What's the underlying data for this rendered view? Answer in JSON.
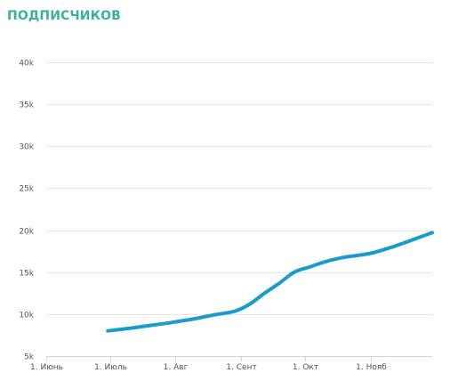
{
  "title": "ПОДПИСЧИКОВ",
  "colors": {
    "title": "#3eaf9a",
    "series": "#1a9bc8",
    "grid": "#e6e6e6",
    "axis": "#cfd6e0",
    "tick_label": "#555555"
  },
  "chart_data": {
    "type": "line",
    "title": "ПОДПИСЧИКОВ",
    "xlabel": "",
    "ylabel": "",
    "grid": true,
    "legend": "none",
    "x_range": [
      "2019-06-01",
      "2019-11-30"
    ],
    "ylim": [
      5000,
      40000
    ],
    "x_ticks": [
      {
        "date": "2019-06-01",
        "label": "1. Июнь"
      },
      {
        "date": "2019-07-01",
        "label": "1. Июль"
      },
      {
        "date": "2019-08-01",
        "label": "1. Авг"
      },
      {
        "date": "2019-09-01",
        "label": "1. Сент"
      },
      {
        "date": "2019-10-01",
        "label": "1. Окт"
      },
      {
        "date": "2019-11-01",
        "label": "1. Нояб"
      }
    ],
    "y_ticks": [
      {
        "value": 5000,
        "label": "5k"
      },
      {
        "value": 10000,
        "label": "10k"
      },
      {
        "value": 15000,
        "label": "15k"
      },
      {
        "value": 20000,
        "label": "20k"
      },
      {
        "value": 25000,
        "label": "25k"
      },
      {
        "value": 30000,
        "label": "30k"
      },
      {
        "value": 35000,
        "label": "35k"
      },
      {
        "value": 40000,
        "label": "40k"
      }
    ],
    "series": [
      {
        "points": [
          {
            "x": "2019-06-30",
            "y": 8000
          },
          {
            "x": "2019-07-10",
            "y": 8300
          },
          {
            "x": "2019-07-20",
            "y": 8650
          },
          {
            "x": "2019-07-30",
            "y": 9000
          },
          {
            "x": "2019-08-09",
            "y": 9400
          },
          {
            "x": "2019-08-19",
            "y": 9900
          },
          {
            "x": "2019-08-29",
            "y": 10350
          },
          {
            "x": "2019-09-05",
            "y": 11200
          },
          {
            "x": "2019-09-12",
            "y": 12500
          },
          {
            "x": "2019-09-19",
            "y": 13700
          },
          {
            "x": "2019-09-26",
            "y": 15000
          },
          {
            "x": "2019-10-03",
            "y": 15600
          },
          {
            "x": "2019-10-10",
            "y": 16200
          },
          {
            "x": "2019-10-18",
            "y": 16700
          },
          {
            "x": "2019-10-26",
            "y": 17000
          },
          {
            "x": "2019-11-02",
            "y": 17300
          },
          {
            "x": "2019-11-10",
            "y": 17900
          },
          {
            "x": "2019-11-18",
            "y": 18600
          },
          {
            "x": "2019-11-30",
            "y": 19700
          }
        ]
      }
    ]
  }
}
